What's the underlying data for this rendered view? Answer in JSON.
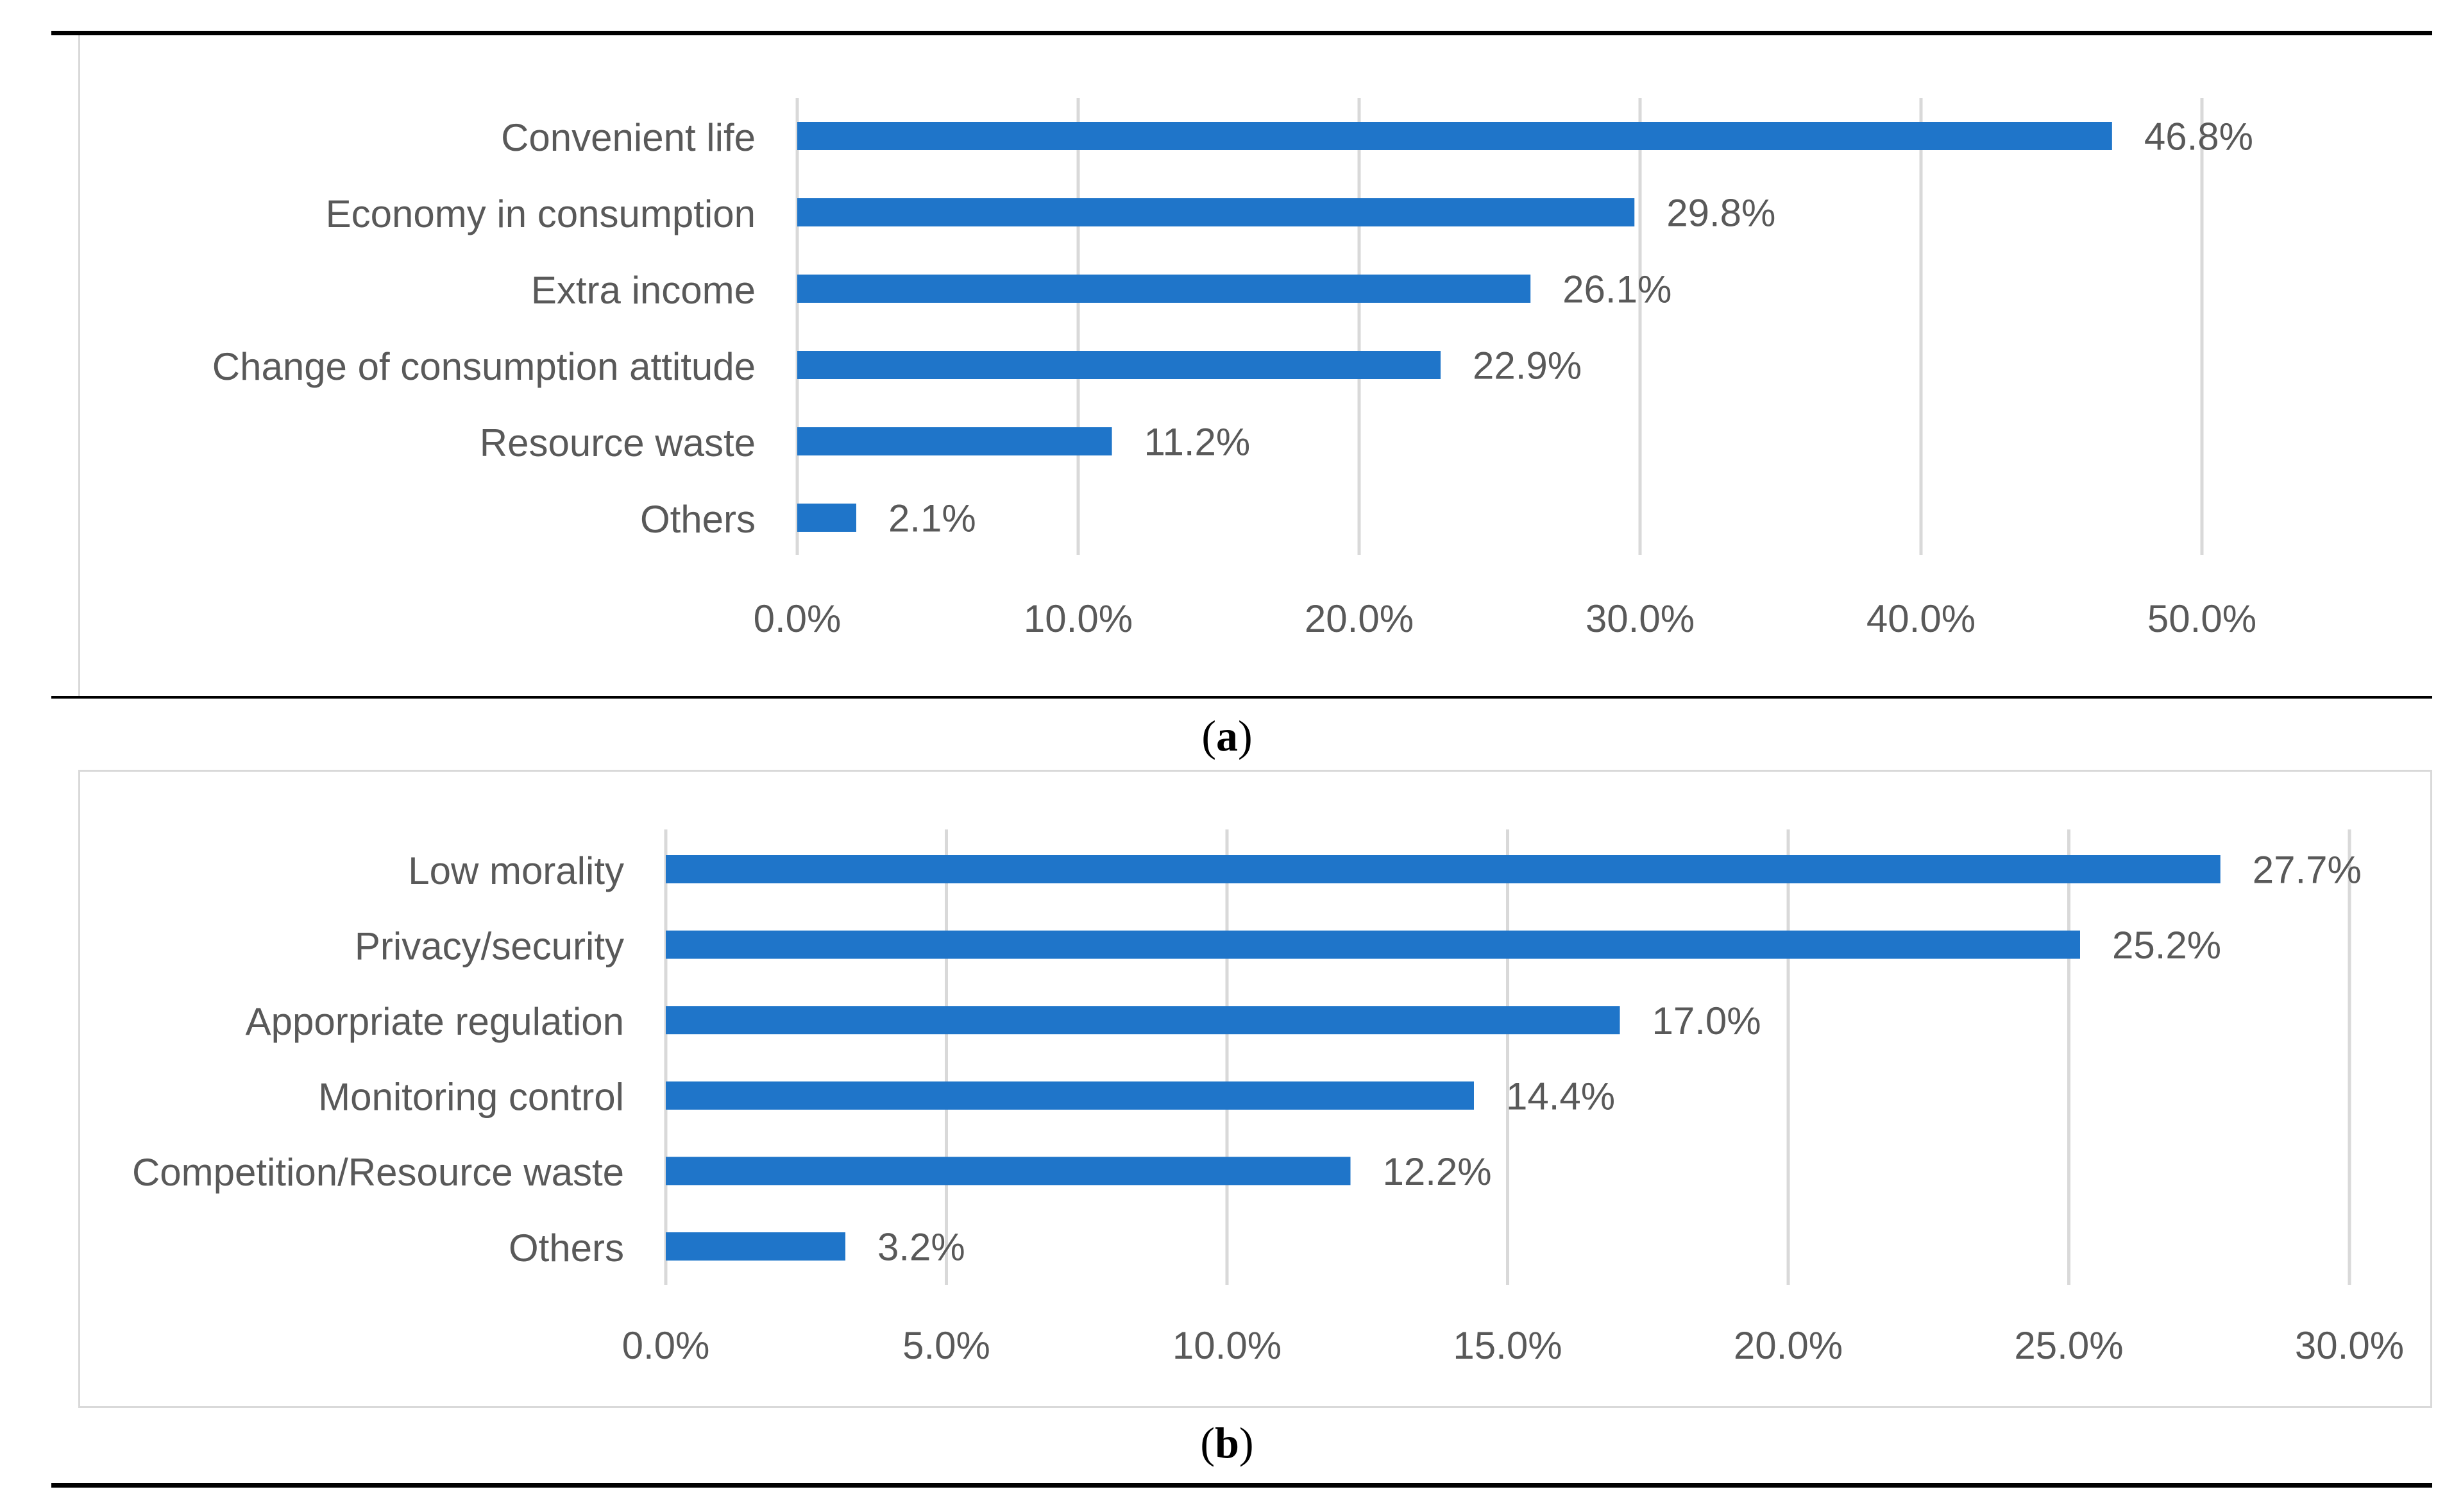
{
  "colors": {
    "bar": "#1f75c9",
    "grid": "#d9d9d9",
    "axis_text": "#595959",
    "rule": "#000000"
  },
  "chart_data": [
    {
      "type": "bar",
      "orientation": "horizontal",
      "panel_label": "a",
      "title": "",
      "xlabel": "",
      "ylabel": "",
      "categories": [
        "Convenient life",
        "Economy in consumption",
        "Extra income",
        "Change of consumption attitude",
        "Resource waste",
        "Others"
      ],
      "values": [
        46.8,
        29.8,
        26.1,
        22.9,
        11.2,
        2.1
      ],
      "value_labels": [
        "46.8%",
        "29.8%",
        "26.1%",
        "22.9%",
        "11.2%",
        "2.1%"
      ],
      "ticks": [
        0,
        10,
        20,
        30,
        40,
        50
      ],
      "tick_labels": [
        "0.0%",
        "10.0%",
        "20.0%",
        "30.0%",
        "40.0%",
        "50.0%"
      ],
      "xlim": [
        0,
        50
      ],
      "grid": true
    },
    {
      "type": "bar",
      "orientation": "horizontal",
      "panel_label": "b",
      "title": "",
      "xlabel": "",
      "ylabel": "",
      "categories": [
        "Low morality",
        "Privacy/security",
        "Apporpriate regulation",
        "Monitoring control",
        "Competition/Resource waste",
        "Others"
      ],
      "values": [
        27.7,
        25.2,
        17.0,
        14.4,
        12.2,
        3.2
      ],
      "value_labels": [
        "27.7%",
        "25.2%",
        "17.0%",
        "14.4%",
        "12.2%",
        "3.2%"
      ],
      "ticks": [
        0,
        5,
        10,
        15,
        20,
        25,
        30
      ],
      "tick_labels": [
        "0.0%",
        "5.0%",
        "10.0%",
        "15.0%",
        "20.0%",
        "25.0%",
        "30.0%"
      ],
      "xlim": [
        0,
        30
      ],
      "grid": true
    }
  ]
}
